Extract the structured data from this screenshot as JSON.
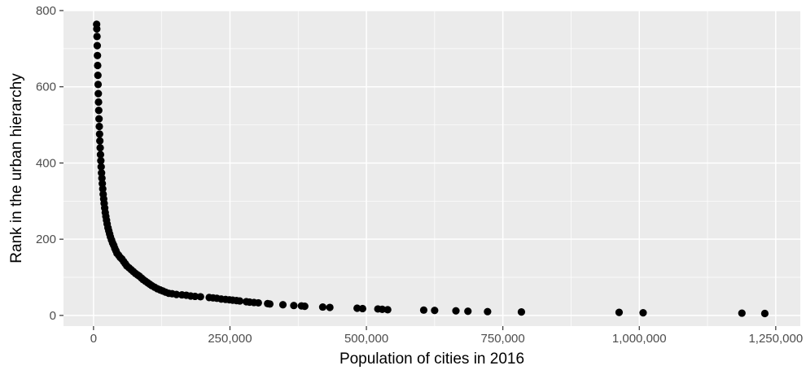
{
  "chart_data": {
    "type": "scatter",
    "title": "",
    "xlabel": "Population of cities in 2016",
    "ylabel": "Rank in the urban hierarchy",
    "xlim": [
      -55000,
      1295000
    ],
    "ylim": [
      -28,
      800
    ],
    "x_ticks": [
      0,
      250000,
      500000,
      750000,
      1000000,
      1250000
    ],
    "x_tick_labels": [
      "0",
      "250,000",
      "500,000",
      "750,000",
      "1,000,000",
      "1,250,000"
    ],
    "y_ticks": [
      0,
      200,
      400,
      600,
      800
    ],
    "y_tick_labels": [
      "0",
      "200",
      "400",
      "600",
      "800"
    ],
    "grid": true,
    "panel_color": "#ebebeb",
    "grid_color": "#ffffff",
    "point_color": "#000000",
    "points": [
      {
        "x": 1230000,
        "y": 5
      },
      {
        "x": 1188000,
        "y": 6
      },
      {
        "x": 1007000,
        "y": 7
      },
      {
        "x": 963000,
        "y": 8
      },
      {
        "x": 784000,
        "y": 9
      },
      {
        "x": 722000,
        "y": 10
      },
      {
        "x": 686000,
        "y": 11
      },
      {
        "x": 664000,
        "y": 12
      },
      {
        "x": 625000,
        "y": 13
      },
      {
        "x": 605000,
        "y": 14
      },
      {
        "x": 539000,
        "y": 15
      },
      {
        "x": 529000,
        "y": 16
      },
      {
        "x": 521000,
        "y": 17
      },
      {
        "x": 493000,
        "y": 18
      },
      {
        "x": 483000,
        "y": 19
      },
      {
        "x": 433000,
        "y": 21
      },
      {
        "x": 420000,
        "y": 22
      },
      {
        "x": 387000,
        "y": 24
      },
      {
        "x": 381000,
        "y": 25
      },
      {
        "x": 367000,
        "y": 26
      },
      {
        "x": 347000,
        "y": 28
      },
      {
        "x": 323000,
        "y": 30
      },
      {
        "x": 319000,
        "y": 31
      },
      {
        "x": 302000,
        "y": 33
      },
      {
        "x": 294000,
        "y": 34
      },
      {
        "x": 286000,
        "y": 35
      },
      {
        "x": 280000,
        "y": 36
      },
      {
        "x": 268000,
        "y": 38
      },
      {
        "x": 262000,
        "y": 39
      },
      {
        "x": 255000,
        "y": 40
      },
      {
        "x": 249000,
        "y": 41
      },
      {
        "x": 242000,
        "y": 42
      },
      {
        "x": 234000,
        "y": 43
      },
      {
        "x": 226000,
        "y": 45
      },
      {
        "x": 219000,
        "y": 46
      },
      {
        "x": 212000,
        "y": 47
      },
      {
        "x": 196000,
        "y": 49
      },
      {
        "x": 186000,
        "y": 50
      },
      {
        "x": 178000,
        "y": 51
      },
      {
        "x": 170000,
        "y": 53
      },
      {
        "x": 162000,
        "y": 54
      },
      {
        "x": 152000,
        "y": 55
      },
      {
        "x": 144000,
        "y": 57
      },
      {
        "x": 138000,
        "y": 58
      },
      {
        "x": 132000,
        "y": 61
      },
      {
        "x": 127000,
        "y": 64
      },
      {
        "x": 122000,
        "y": 67
      },
      {
        "x": 117000,
        "y": 70
      },
      {
        "x": 112000,
        "y": 74
      },
      {
        "x": 107000,
        "y": 78
      },
      {
        "x": 103000,
        "y": 82
      },
      {
        "x": 99000,
        "y": 86
      },
      {
        "x": 95000,
        "y": 90
      },
      {
        "x": 91000,
        "y": 94
      },
      {
        "x": 88000,
        "y": 98
      },
      {
        "x": 84000,
        "y": 103
      },
      {
        "x": 81000,
        "y": 106
      },
      {
        "x": 77000,
        "y": 110
      },
      {
        "x": 73000,
        "y": 115
      },
      {
        "x": 69000,
        "y": 120
      },
      {
        "x": 65000,
        "y": 125
      },
      {
        "x": 61000,
        "y": 130
      },
      {
        "x": 58000,
        "y": 136
      },
      {
        "x": 55000,
        "y": 142
      },
      {
        "x": 52000,
        "y": 148
      },
      {
        "x": 49000,
        "y": 152
      },
      {
        "x": 46000,
        "y": 158
      },
      {
        "x": 43000,
        "y": 163
      },
      {
        "x": 41000,
        "y": 170
      },
      {
        "x": 39000,
        "y": 176
      },
      {
        "x": 37000,
        "y": 184
      },
      {
        "x": 35000,
        "y": 190
      },
      {
        "x": 33000,
        "y": 198
      },
      {
        "x": 31000,
        "y": 206
      },
      {
        "x": 29500,
        "y": 214
      },
      {
        "x": 28000,
        "y": 222
      },
      {
        "x": 26500,
        "y": 230
      },
      {
        "x": 25000,
        "y": 240
      },
      {
        "x": 23800,
        "y": 250
      },
      {
        "x": 22600,
        "y": 260
      },
      {
        "x": 21500,
        "y": 270
      },
      {
        "x": 20500,
        "y": 282
      },
      {
        "x": 19500,
        "y": 294
      },
      {
        "x": 18600,
        "y": 306
      },
      {
        "x": 17700,
        "y": 318
      },
      {
        "x": 16900,
        "y": 332
      },
      {
        "x": 16100,
        "y": 346
      },
      {
        "x": 15400,
        "y": 360
      },
      {
        "x": 14700,
        "y": 374
      },
      {
        "x": 14000,
        "y": 390
      },
      {
        "x": 13400,
        "y": 406
      },
      {
        "x": 12800,
        "y": 422
      },
      {
        "x": 12200,
        "y": 440
      },
      {
        "x": 11600,
        "y": 458
      },
      {
        "x": 11100,
        "y": 476
      },
      {
        "x": 10600,
        "y": 496
      },
      {
        "x": 10100,
        "y": 516
      },
      {
        "x": 9600,
        "y": 538
      },
      {
        "x": 9200,
        "y": 560
      },
      {
        "x": 8800,
        "y": 582
      },
      {
        "x": 8400,
        "y": 606
      },
      {
        "x": 8000,
        "y": 630
      },
      {
        "x": 7600,
        "y": 656
      },
      {
        "x": 7200,
        "y": 682
      },
      {
        "x": 6800,
        "y": 708
      },
      {
        "x": 6400,
        "y": 732
      },
      {
        "x": 6000,
        "y": 752
      },
      {
        "x": 5700,
        "y": 764
      }
    ]
  }
}
